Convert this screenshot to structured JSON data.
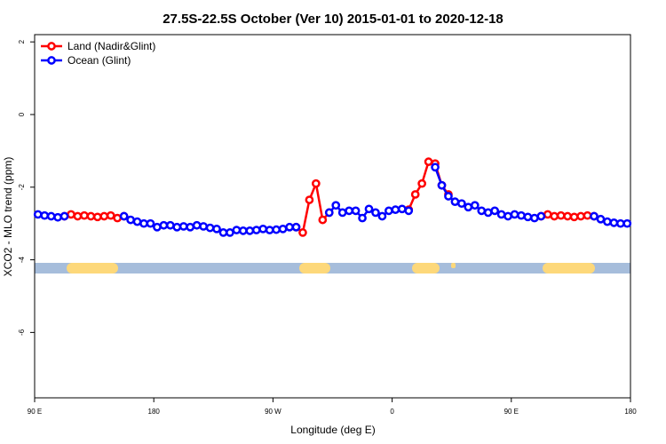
{
  "chart_data": {
    "type": "line",
    "title": "27.5S-22.5S October (Ver 10)   2015-01-01 to 2020-12-18",
    "x_label": "Longitude (deg E)",
    "y_label": "XCO2 - MLO trend (ppm)",
    "xlim": [
      90,
      540
    ],
    "ylim": [
      -7.8,
      2.2
    ],
    "xticks": [
      {
        "value": 90,
        "label": "90 E"
      },
      {
        "value": 180,
        "label": "180"
      },
      {
        "value": 270,
        "label": "90 W"
      },
      {
        "value": 360,
        "label": "0"
      },
      {
        "value": 450,
        "label": "90 E"
      },
      {
        "value": 540,
        "label": "180"
      }
    ],
    "yticks": [
      2,
      0,
      -2,
      -4,
      -6
    ],
    "legend": "top-left",
    "x": [
      92.5,
      97.5,
      102.5,
      107.5,
      112.5,
      117.5,
      122.5,
      127.5,
      132.5,
      137.5,
      142.5,
      147.5,
      152.5,
      157.5,
      162.5,
      167.5,
      172.5,
      177.5,
      182.5,
      187.5,
      192.5,
      197.5,
      202.5,
      207.5,
      212.5,
      217.5,
      222.5,
      227.5,
      232.5,
      237.5,
      242.5,
      247.5,
      252.5,
      257.5,
      262.5,
      267.5,
      272.5,
      277.5,
      282.5,
      287.5,
      292.5,
      297.5,
      302.5,
      307.5,
      312.5,
      317.5,
      322.5,
      327.5,
      332.5,
      337.5,
      342.5,
      347.5,
      352.5,
      357.5,
      362.5,
      367.5,
      372.5,
      377.5,
      382.5,
      387.5,
      392.5,
      397.5,
      402.5,
      407.5,
      412.5,
      417.5,
      422.5,
      427.5,
      432.5,
      437.5,
      442.5,
      447.5,
      452.5,
      457.5,
      462.5,
      467.5,
      472.5,
      477.5,
      482.5,
      487.5,
      492.5,
      497.5,
      502.5,
      507.5,
      512.5,
      517.5,
      522.5,
      527.5,
      532.5,
      537.5
    ],
    "series": [
      {
        "name": "Land (Nadir&Glint)",
        "color": "#ff0000",
        "values": [
          null,
          null,
          null,
          null,
          -2.8,
          -2.75,
          -2.8,
          -2.78,
          -2.8,
          -2.82,
          -2.8,
          -2.78,
          -2.85,
          -2.8,
          null,
          null,
          null,
          null,
          null,
          null,
          null,
          null,
          null,
          null,
          null,
          null,
          null,
          null,
          null,
          null,
          null,
          null,
          null,
          null,
          null,
          null,
          null,
          null,
          null,
          -3.1,
          -3.25,
          -2.35,
          -1.9,
          -2.9,
          -2.7,
          null,
          null,
          null,
          null,
          null,
          null,
          null,
          null,
          null,
          null,
          null,
          -2.62,
          -2.2,
          -1.9,
          -1.3,
          -1.35,
          -1.95,
          -2.2,
          null,
          null,
          null,
          null,
          null,
          null,
          null,
          null,
          null,
          null,
          null,
          null,
          null,
          -2.8,
          -2.75,
          -2.8,
          -2.78,
          -2.8,
          -2.82,
          -2.8,
          -2.78,
          -2.8,
          null,
          null,
          null,
          null,
          null
        ]
      },
      {
        "name": "Ocean (Glint)",
        "color": "#0000ff",
        "values": [
          -2.75,
          -2.78,
          -2.8,
          -2.83,
          -2.8,
          null,
          null,
          null,
          null,
          null,
          null,
          null,
          null,
          -2.8,
          -2.9,
          -2.95,
          -3.0,
          -3.0,
          -3.1,
          -3.05,
          -3.05,
          -3.1,
          -3.08,
          -3.1,
          -3.05,
          -3.08,
          -3.12,
          -3.15,
          -3.25,
          -3.25,
          -3.18,
          -3.2,
          -3.2,
          -3.18,
          -3.15,
          -3.18,
          -3.17,
          -3.15,
          -3.1,
          -3.1,
          null,
          null,
          null,
          null,
          -2.7,
          -2.5,
          -2.7,
          -2.65,
          -2.65,
          -2.85,
          -2.6,
          -2.7,
          -2.8,
          -2.65,
          -2.62,
          -2.6,
          -2.65,
          null,
          null,
          null,
          -1.45,
          -1.95,
          -2.25,
          -2.4,
          -2.45,
          -2.55,
          -2.5,
          -2.65,
          -2.7,
          -2.65,
          -2.75,
          -2.8,
          -2.75,
          -2.78,
          -2.82,
          -2.85,
          -2.8,
          null,
          null,
          null,
          null,
          null,
          null,
          null,
          -2.8,
          -2.88,
          -2.95,
          -2.98,
          -3.0,
          -3.0
        ]
      }
    ]
  }
}
